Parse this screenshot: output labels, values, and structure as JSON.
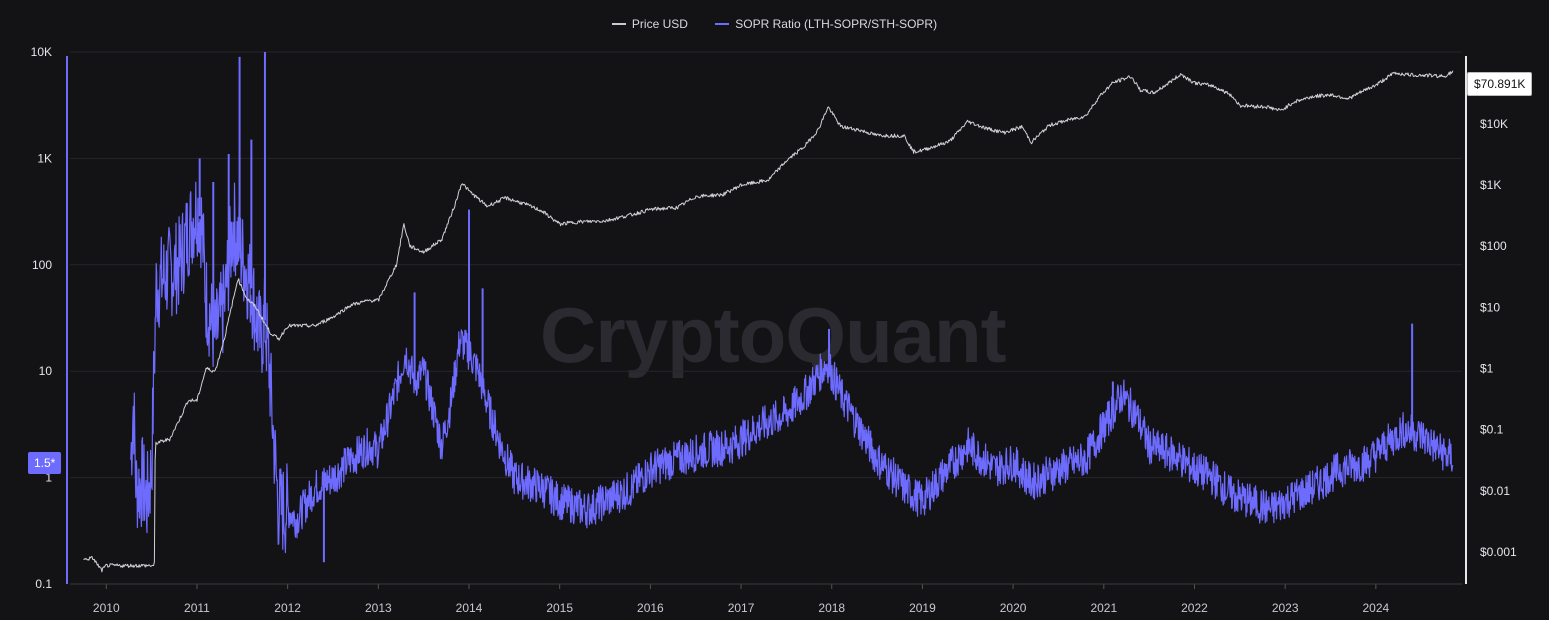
{
  "watermark": "CryptoQuant",
  "legend": [
    {
      "label": "Price USD",
      "color": "#c9c9cf"
    },
    {
      "label": "SOPR Ratio (LTH-SOPR/STH-SOPR)",
      "color": "#6e6bff"
    }
  ],
  "badges": {
    "left_value": "1.5*",
    "right_value": "$70.891K"
  },
  "chart_data": {
    "type": "line",
    "x_axis": {
      "range": [
        2009.6,
        2024.95
      ],
      "ticks": [
        "2010",
        "2011",
        "2012",
        "2013",
        "2014",
        "2015",
        "2016",
        "2017",
        "2018",
        "2019",
        "2020",
        "2021",
        "2022",
        "2023",
        "2024"
      ]
    },
    "left_axis": {
      "scale": "log",
      "range": [
        0.1,
        10000
      ],
      "ticks": [
        {
          "v": 0.1,
          "label": "0.1"
        },
        {
          "v": 1,
          "label": "1"
        },
        {
          "v": 10,
          "label": "10"
        },
        {
          "v": 100,
          "label": "100"
        },
        {
          "v": 1000,
          "label": "1K"
        },
        {
          "v": 10000,
          "label": "10K"
        }
      ]
    },
    "right_axis": {
      "scale": "log",
      "range": [
        0.0003,
        150000
      ],
      "ticks": [
        {
          "v": 0.001,
          "label": "$0.001"
        },
        {
          "v": 0.01,
          "label": "$0.01"
        },
        {
          "v": 0.1,
          "label": "$0.1"
        },
        {
          "v": 1,
          "label": "$1"
        },
        {
          "v": 10,
          "label": "$10"
        },
        {
          "v": 100,
          "label": "$100"
        },
        {
          "v": 1000,
          "label": "$1K"
        },
        {
          "v": 10000,
          "label": "$10K"
        }
      ]
    },
    "grid": true,
    "series": [
      {
        "name": "Price USD",
        "axis": "right",
        "color": "#d0d0d6",
        "points": [
          [
            2009.75,
            0.00075
          ],
          [
            2009.85,
            0.0008
          ],
          [
            2009.95,
            0.0005
          ],
          [
            2010.0,
            0.0006
          ],
          [
            2010.3,
            0.0006
          ],
          [
            2010.53,
            0.0006
          ],
          [
            2010.54,
            0.06
          ],
          [
            2010.7,
            0.07
          ],
          [
            2010.85,
            0.2
          ],
          [
            2010.9,
            0.3
          ],
          [
            2011.0,
            0.3
          ],
          [
            2011.1,
            1
          ],
          [
            2011.2,
            0.9
          ],
          [
            2011.3,
            3
          ],
          [
            2011.42,
            18
          ],
          [
            2011.45,
            30
          ],
          [
            2011.55,
            14
          ],
          [
            2011.65,
            10
          ],
          [
            2011.8,
            4
          ],
          [
            2011.9,
            3
          ],
          [
            2012.0,
            5
          ],
          [
            2012.3,
            5
          ],
          [
            2012.5,
            7
          ],
          [
            2012.7,
            11
          ],
          [
            2012.9,
            13
          ],
          [
            2013.0,
            13
          ],
          [
            2013.2,
            50
          ],
          [
            2013.28,
            230
          ],
          [
            2013.35,
            100
          ],
          [
            2013.5,
            80
          ],
          [
            2013.7,
            130
          ],
          [
            2013.85,
            500
          ],
          [
            2013.92,
            1100
          ],
          [
            2014.0,
            800
          ],
          [
            2014.1,
            600
          ],
          [
            2014.2,
            450
          ],
          [
            2014.4,
            620
          ],
          [
            2014.6,
            500
          ],
          [
            2014.8,
            380
          ],
          [
            2015.0,
            230
          ],
          [
            2015.2,
            250
          ],
          [
            2015.5,
            260
          ],
          [
            2015.8,
            330
          ],
          [
            2016.0,
            400
          ],
          [
            2016.3,
            430
          ],
          [
            2016.5,
            650
          ],
          [
            2016.8,
            700
          ],
          [
            2017.0,
            1000
          ],
          [
            2017.3,
            1200
          ],
          [
            2017.5,
            2500
          ],
          [
            2017.7,
            4300
          ],
          [
            2017.85,
            8000
          ],
          [
            2017.96,
            19000
          ],
          [
            2018.1,
            9000
          ],
          [
            2018.3,
            8000
          ],
          [
            2018.5,
            6500
          ],
          [
            2018.8,
            6400
          ],
          [
            2018.9,
            3500
          ],
          [
            2019.0,
            3700
          ],
          [
            2019.3,
            5200
          ],
          [
            2019.5,
            11000
          ],
          [
            2019.7,
            8500
          ],
          [
            2019.9,
            7200
          ],
          [
            2020.1,
            9000
          ],
          [
            2020.2,
            5000
          ],
          [
            2020.4,
            9500
          ],
          [
            2020.6,
            11500
          ],
          [
            2020.8,
            13500
          ],
          [
            2020.95,
            28000
          ],
          [
            2021.1,
            47000
          ],
          [
            2021.3,
            60000
          ],
          [
            2021.4,
            36000
          ],
          [
            2021.55,
            32000
          ],
          [
            2021.7,
            45000
          ],
          [
            2021.85,
            65000
          ],
          [
            2022.0,
            47000
          ],
          [
            2022.2,
            42000
          ],
          [
            2022.4,
            30000
          ],
          [
            2022.5,
            20000
          ],
          [
            2022.8,
            19000
          ],
          [
            2022.95,
            16500
          ],
          [
            2023.1,
            23000
          ],
          [
            2023.3,
            28000
          ],
          [
            2023.5,
            30000
          ],
          [
            2023.7,
            26000
          ],
          [
            2023.9,
            37000
          ],
          [
            2024.0,
            43000
          ],
          [
            2024.2,
            68000
          ],
          [
            2024.4,
            63000
          ],
          [
            2024.6,
            62000
          ],
          [
            2024.75,
            60000
          ],
          [
            2024.85,
            70891
          ]
        ]
      },
      {
        "name": "SOPR Ratio (LTH-SOPR/STH-SOPR)",
        "axis": "left",
        "color": "#6e6bff",
        "points": [
          [
            2010.27,
            1.5
          ],
          [
            2010.3,
            5
          ],
          [
            2010.33,
            0.8
          ],
          [
            2010.4,
            0.9
          ],
          [
            2010.45,
            0.6
          ],
          [
            2010.5,
            1.2
          ],
          [
            2010.55,
            60
          ],
          [
            2010.65,
            80
          ],
          [
            2010.8,
            100
          ],
          [
            2010.9,
            200
          ],
          [
            2011.0,
            350
          ],
          [
            2011.05,
            250
          ],
          [
            2011.1,
            50
          ],
          [
            2011.2,
            20
          ],
          [
            2011.3,
            40
          ],
          [
            2011.4,
            250
          ],
          [
            2011.5,
            120
          ],
          [
            2011.6,
            60
          ],
          [
            2011.7,
            20
          ],
          [
            2011.75,
            30
          ],
          [
            2011.8,
            10
          ],
          [
            2011.85,
            2
          ],
          [
            2011.9,
            0.5
          ],
          [
            2012.0,
            0.5
          ],
          [
            2012.1,
            0.4
          ],
          [
            2012.3,
            0.8
          ],
          [
            2012.5,
            1
          ],
          [
            2012.7,
            1.5
          ],
          [
            2012.9,
            2
          ],
          [
            2013.0,
            1.8
          ],
          [
            2013.15,
            5
          ],
          [
            2013.3,
            15
          ],
          [
            2013.4,
            8
          ],
          [
            2013.5,
            10
          ],
          [
            2013.7,
            2
          ],
          [
            2013.8,
            5
          ],
          [
            2013.9,
            20
          ],
          [
            2014.0,
            15
          ],
          [
            2014.1,
            10
          ],
          [
            2014.2,
            5
          ],
          [
            2014.35,
            2
          ],
          [
            2014.5,
            1
          ],
          [
            2014.8,
            0.8
          ],
          [
            2015.0,
            0.6
          ],
          [
            2015.3,
            0.5
          ],
          [
            2015.5,
            0.6
          ],
          [
            2015.8,
            0.8
          ],
          [
            2016.0,
            1.2
          ],
          [
            2016.3,
            1.5
          ],
          [
            2016.6,
            1.8
          ],
          [
            2016.9,
            2
          ],
          [
            2017.2,
            3
          ],
          [
            2017.5,
            4
          ],
          [
            2017.7,
            6
          ],
          [
            2017.95,
            12
          ],
          [
            2018.1,
            6
          ],
          [
            2018.3,
            3
          ],
          [
            2018.5,
            1.5
          ],
          [
            2018.8,
            0.8
          ],
          [
            2019.0,
            0.6
          ],
          [
            2019.2,
            1
          ],
          [
            2019.5,
            2
          ],
          [
            2019.8,
            1.2
          ],
          [
            2020.0,
            1.4
          ],
          [
            2020.2,
            0.9
          ],
          [
            2020.5,
            1.2
          ],
          [
            2020.8,
            1.5
          ],
          [
            2021.0,
            3
          ],
          [
            2021.2,
            6
          ],
          [
            2021.35,
            4
          ],
          [
            2021.5,
            2
          ],
          [
            2021.8,
            1.6
          ],
          [
            2022.0,
            1.2
          ],
          [
            2022.2,
            1
          ],
          [
            2022.4,
            0.7
          ],
          [
            2022.6,
            0.6
          ],
          [
            2022.85,
            0.5
          ],
          [
            2023.0,
            0.6
          ],
          [
            2023.3,
            0.8
          ],
          [
            2023.6,
            1.2
          ],
          [
            2023.9,
            1.4
          ],
          [
            2024.1,
            2
          ],
          [
            2024.3,
            2.8
          ],
          [
            2024.5,
            2.5
          ],
          [
            2024.7,
            1.8
          ],
          [
            2024.85,
            1.5
          ]
        ],
        "spikes": [
          [
            2011.03,
            1000
          ],
          [
            2011.18,
            600
          ],
          [
            2011.35,
            1100
          ],
          [
            2011.47,
            9000
          ],
          [
            2011.6,
            1500
          ],
          [
            2011.75,
            10000
          ],
          [
            2012.4,
            0.16
          ],
          [
            2013.4,
            55
          ],
          [
            2014.0,
            330
          ],
          [
            2014.15,
            60
          ],
          [
            2017.97,
            25
          ],
          [
            2021.1,
            8
          ],
          [
            2024.4,
            28
          ]
        ]
      }
    ]
  }
}
